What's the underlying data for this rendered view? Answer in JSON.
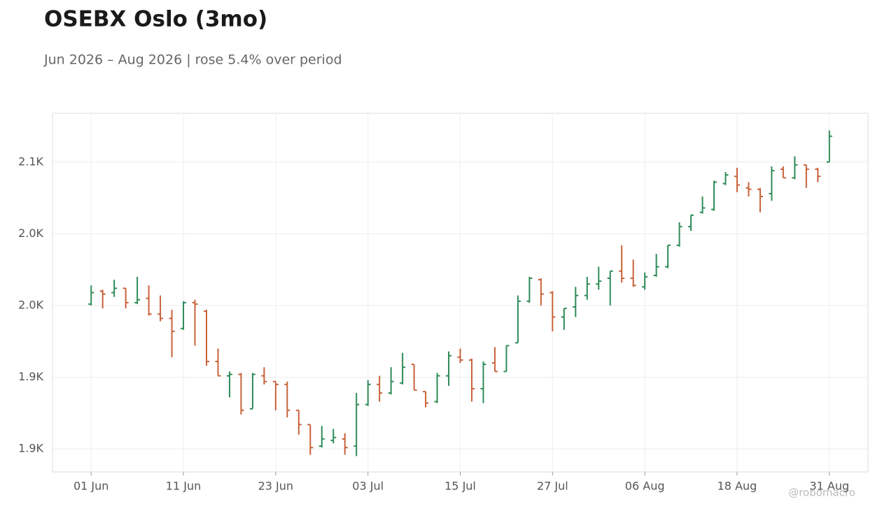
{
  "chart_data": {
    "type": "ohlc",
    "title": "OSEBX Oslo (3mo)",
    "subtitle": "Jun 2026 – Aug 2026 | rose 5.4% over period",
    "watermark": "@robomacro",
    "categories": [
      "01 Jun",
      null,
      null,
      null,
      null,
      null,
      null,
      null,
      "11 Jun",
      null,
      null,
      null,
      null,
      null,
      null,
      null,
      "23 Jun",
      null,
      null,
      null,
      null,
      null,
      null,
      null,
      "03 Jul",
      null,
      null,
      null,
      null,
      null,
      null,
      null,
      "15 Jul",
      null,
      null,
      null,
      null,
      null,
      null,
      null,
      "27 Jul",
      null,
      null,
      null,
      null,
      null,
      null,
      null,
      "06 Aug",
      null,
      null,
      null,
      null,
      null,
      null,
      null,
      "18 Aug",
      null,
      null,
      null,
      null,
      null,
      null,
      null,
      "31 Aug"
    ],
    "open": [
      2001,
      2010,
      2009,
      2012,
      2002,
      2005,
      1994,
      1991,
      1984,
      2002,
      1996,
      1961,
      1951,
      1952,
      1928,
      1951,
      1947,
      1945,
      1927,
      1917,
      1902,
      1906,
      1907,
      1902,
      1931,
      1945,
      1939,
      1946,
      1959,
      1940,
      1933,
      1951,
      1964,
      1962,
      1942,
      1960,
      1954,
      1974,
      2003,
      2018,
      2009,
      1992,
      1999,
      2007,
      2015,
      2019,
      2024,
      2019,
      2013,
      2021,
      2027,
      2042,
      2055,
      2065,
      2067,
      2085,
      2090,
      2082,
      2081,
      2078,
      2095,
      2089,
      2098,
      2095,
      2100
    ],
    "high": [
      2014,
      2011,
      2018,
      2012,
      2020,
      2014,
      2007,
      1997,
      2003,
      2004,
      1997,
      1970,
      1954,
      1953,
      1953,
      1957,
      1947,
      1947,
      1927,
      1917,
      1916,
      1914,
      1911,
      1939,
      1948,
      1951,
      1957,
      1967,
      1959,
      1940,
      1953,
      1968,
      1970,
      1963,
      1961,
      1971,
      1972,
      2007,
      2020,
      2019,
      2010,
      1998,
      2013,
      2020,
      2027,
      2024,
      2042,
      2032,
      2023,
      2036,
      2042,
      2058,
      2063,
      2076,
      2087,
      2093,
      2096,
      2086,
      2082,
      2097,
      2097,
      2104,
      2098,
      2096,
      2122
    ],
    "low": [
      2000,
      1998,
      2006,
      1998,
      2001,
      1993,
      1989,
      1964,
      1983,
      1972,
      1958,
      1951,
      1936,
      1924,
      1928,
      1945,
      1927,
      1922,
      1910,
      1896,
      1901,
      1904,
      1896,
      1895,
      1930,
      1933,
      1938,
      1945,
      1941,
      1929,
      1932,
      1944,
      1960,
      1933,
      1932,
      1954,
      1954,
      1974,
      2002,
      2000,
      1982,
      1983,
      1992,
      2004,
      2011,
      2000,
      2016,
      2013,
      2011,
      2020,
      2026,
      2041,
      2052,
      2064,
      2066,
      2084,
      2079,
      2076,
      2065,
      2073,
      2089,
      2088,
      2082,
      2086,
      2100
    ],
    "close": [
      2009,
      2008,
      2012,
      2002,
      2004,
      1994,
      1991,
      1982,
      2002,
      2001,
      1961,
      1951,
      1952,
      1927,
      1952,
      1947,
      1945,
      1927,
      1917,
      1901,
      1907,
      1908,
      1901,
      1931,
      1945,
      1939,
      1947,
      1957,
      1941,
      1932,
      1951,
      1965,
      1962,
      1942,
      1959,
      1954,
      1972,
      2003,
      2019,
      2008,
      1992,
      1998,
      2007,
      2015,
      2017,
      2024,
      2019,
      2014,
      2020,
      2027,
      2042,
      2055,
      2063,
      2068,
      2086,
      2091,
      2084,
      2081,
      2076,
      2094,
      2089,
      2098,
      2095,
      2090,
      2118
    ],
    "up_color": "#2e8b57",
    "down_color": "#c8623b",
    "ylim": [
      1884,
      2134
    ],
    "yticks": [
      {
        "value": 1900,
        "label": "1.9K"
      },
      {
        "value": 1950,
        "label": "1.9K"
      },
      {
        "value": 2000,
        "label": "2.0K"
      },
      {
        "value": 2050,
        "label": "2.0K"
      },
      {
        "value": 2100,
        "label": "2.1K"
      }
    ],
    "grid": true
  }
}
